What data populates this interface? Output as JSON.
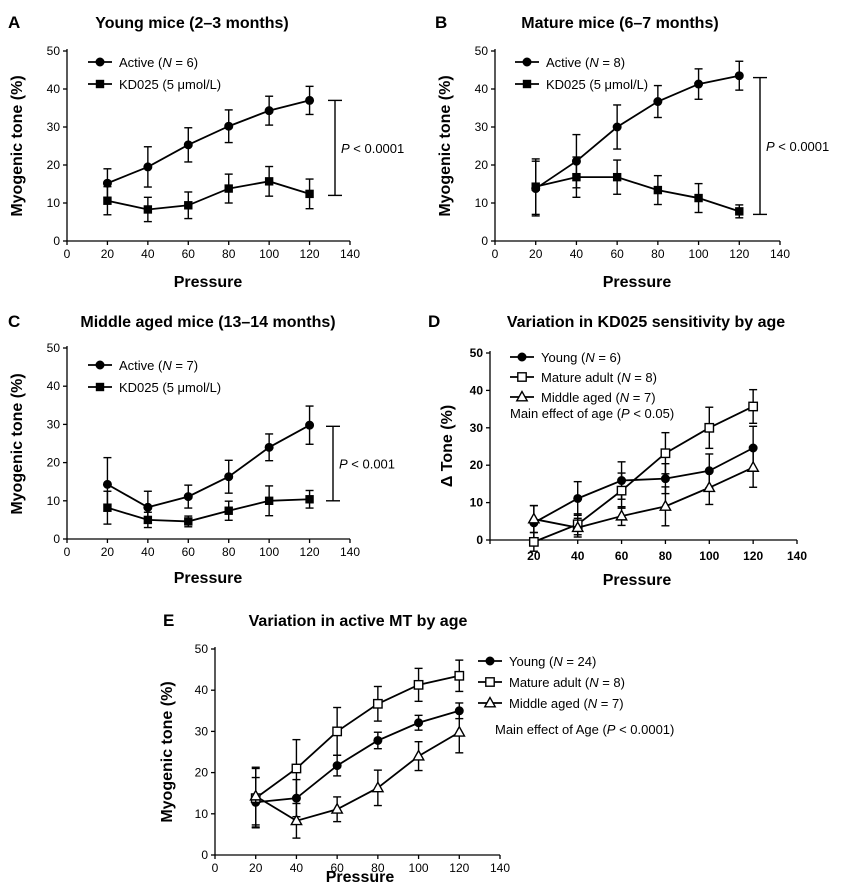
{
  "chart_data": [
    {
      "type": "line",
      "panel": "A",
      "title": "Young mice (2–3 months)",
      "xlabel": "Pressure",
      "ylabel": "Myogenic tone (%)",
      "xlim": [
        0,
        140
      ],
      "ylim": [
        0,
        50
      ],
      "xticks": [
        0,
        20,
        40,
        60,
        80,
        100,
        120,
        140
      ],
      "yticks": [
        0,
        10,
        20,
        30,
        40,
        50
      ],
      "x": [
        20,
        40,
        60,
        80,
        100,
        120
      ],
      "legend_position": "top-left",
      "series": [
        {
          "label_pre": "Active (",
          "label_n": "N",
          "label_post": " = 6)",
          "marker": "circle-filled",
          "values": [
            15.2,
            19.5,
            25.3,
            30.2,
            34.3,
            37.0
          ],
          "errors": [
            3.8,
            5.3,
            4.5,
            4.3,
            3.8,
            3.7
          ]
        },
        {
          "label_pre": "KD025 (5 μmol/L)",
          "label_n": "",
          "label_post": "",
          "marker": "square-filled",
          "values": [
            10.6,
            8.3,
            9.4,
            13.8,
            15.7,
            12.4
          ],
          "errors": [
            3.7,
            3.2,
            3.5,
            3.8,
            3.9,
            3.9
          ]
        }
      ],
      "annotation": {
        "p": "P",
        "rest": " < 0.0001",
        "bracket": [
          37,
          12
        ]
      }
    },
    {
      "type": "line",
      "panel": "B",
      "title": "Mature mice (6–7 months)",
      "xlabel": "Pressure",
      "ylabel": "Myogenic tone (%)",
      "xlim": [
        0,
        140
      ],
      "ylim": [
        0,
        50
      ],
      "xticks": [
        0,
        20,
        40,
        60,
        80,
        100,
        120,
        140
      ],
      "yticks": [
        0,
        10,
        20,
        30,
        40,
        50
      ],
      "x": [
        20,
        40,
        60,
        80,
        100,
        120
      ],
      "legend_position": "top-left",
      "series": [
        {
          "label_pre": "Active (",
          "label_n": "N",
          "label_post": " = 8)",
          "marker": "circle-filled",
          "values": [
            13.8,
            21.0,
            30.0,
            36.7,
            41.3,
            43.5
          ],
          "errors": [
            7.2,
            7.0,
            5.8,
            4.2,
            4.0,
            3.8
          ]
        },
        {
          "label_pre": "KD025 (5 μmol/L)",
          "label_n": "",
          "label_post": "",
          "marker": "square-filled",
          "values": [
            14.3,
            16.8,
            16.8,
            13.4,
            11.3,
            7.8
          ],
          "errors": [
            7.3,
            5.3,
            4.5,
            3.8,
            3.8,
            1.7
          ]
        }
      ],
      "annotation": {
        "p": "P",
        "rest": " < 0.0001",
        "bracket": [
          43,
          7
        ]
      }
    },
    {
      "type": "line",
      "panel": "C",
      "title": "Middle aged mice (13–14 months)",
      "xlabel": "Pressure",
      "ylabel": "Myogenic tone (%)",
      "xlim": [
        0,
        140
      ],
      "ylim": [
        0,
        50
      ],
      "xticks": [
        0,
        20,
        40,
        60,
        80,
        100,
        120,
        140
      ],
      "yticks": [
        0,
        10,
        20,
        30,
        40,
        50
      ],
      "x": [
        20,
        40,
        60,
        80,
        100,
        120
      ],
      "legend_position": "top-left",
      "series": [
        {
          "label_pre": "Active (",
          "label_n": "N",
          "label_post": " = 7)",
          "marker": "circle-filled",
          "values": [
            14.3,
            8.3,
            11.1,
            16.3,
            24.0,
            29.8
          ],
          "errors": [
            7.0,
            4.2,
            3.0,
            4.3,
            3.5,
            5.0
          ]
        },
        {
          "label_pre": "KD025 (5 μmol/L)",
          "label_n": "",
          "label_post": "",
          "marker": "square-filled",
          "values": [
            8.2,
            5.0,
            4.6,
            7.4,
            10.0,
            10.4
          ],
          "errors": [
            4.3,
            2.0,
            1.4,
            2.5,
            3.9,
            2.3
          ]
        }
      ],
      "annotation": {
        "p": "P",
        "rest": " < 0.001",
        "bracket": [
          29.5,
          10
        ]
      }
    },
    {
      "type": "line",
      "panel": "D",
      "title": "Variation in KD025 sensitivity by age",
      "xlabel": "Pressure",
      "ylabel": "Δ Tone (%)",
      "xlim": [
        0,
        140
      ],
      "ylim": [
        0,
        50
      ],
      "xticks": [
        20,
        40,
        60,
        80,
        100,
        120,
        140
      ],
      "yticks": [
        0,
        10,
        20,
        30,
        40,
        50
      ],
      "x": [
        20,
        40,
        60,
        80,
        100,
        120
      ],
      "legend_position": "top-left",
      "series": [
        {
          "label_pre": "Young (",
          "label_n": "N",
          "label_post": " = 6)",
          "marker": "circle-filled",
          "values": [
            4.6,
            11.1,
            15.9,
            16.4,
            18.5,
            24.6
          ],
          "errors": [
            4.6,
            4.5,
            5.0,
            4.0,
            4.5,
            5.8
          ]
        },
        {
          "label_pre": "Mature adult (",
          "label_n": "N",
          "label_post": " = 8)",
          "marker": "square-open",
          "values": [
            -0.5,
            4.2,
            13.2,
            23.2,
            30.0,
            35.7
          ],
          "errors": [
            2.5,
            2.8,
            4.7,
            5.5,
            5.5,
            4.5
          ]
        },
        {
          "label_pre": "Middle aged (",
          "label_n": "N",
          "label_post": " = 7)",
          "marker": "triangle-open",
          "values": [
            5.6,
            3.3,
            6.4,
            9.0,
            14.0,
            19.4
          ],
          "errors": [
            3.6,
            2.5,
            2.5,
            5.2,
            4.5,
            5.3
          ]
        }
      ],
      "annotation": {
        "text_pre": "Main effect of age (",
        "p": "P",
        "rest": " < 0.05)"
      }
    },
    {
      "type": "line",
      "panel": "E",
      "title": "Variation in active MT by age",
      "xlabel": "Pressure",
      "ylabel": "Myogenic tone (%)",
      "xlim": [
        0,
        140
      ],
      "ylim": [
        0,
        50
      ],
      "xticks": [
        0,
        20,
        40,
        60,
        80,
        100,
        120,
        140
      ],
      "yticks": [
        0,
        10,
        20,
        30,
        40,
        50
      ],
      "x": [
        20,
        40,
        60,
        80,
        100,
        120
      ],
      "legend_position": "right",
      "series": [
        {
          "label_pre": "Young (",
          "label_n": "N",
          "label_post": " = 24)",
          "marker": "circle-filled",
          "values": [
            12.8,
            13.8,
            21.7,
            27.8,
            32.1,
            35.0
          ],
          "errors": [
            6.0,
            4.5,
            2.5,
            2.0,
            1.8,
            1.9
          ]
        },
        {
          "label_pre": "Mature adult (",
          "label_n": "N",
          "label_post": " = 8)",
          "marker": "square-open",
          "values": [
            13.8,
            21.0,
            30.0,
            36.7,
            41.3,
            43.5
          ],
          "errors": [
            7.2,
            7.0,
            5.8,
            4.2,
            4.0,
            3.8
          ]
        },
        {
          "label_pre": "Middle aged (",
          "label_n": "N",
          "label_post": " = 7)",
          "marker": "triangle-open",
          "values": [
            14.3,
            8.3,
            11.1,
            16.3,
            24.0,
            29.8
          ],
          "errors": [
            7.0,
            4.2,
            3.0,
            4.3,
            3.5,
            5.0
          ]
        }
      ],
      "annotation": {
        "text_pre": "Main effect of Age (",
        "p": "P",
        "rest": " < 0.0001)"
      }
    }
  ]
}
